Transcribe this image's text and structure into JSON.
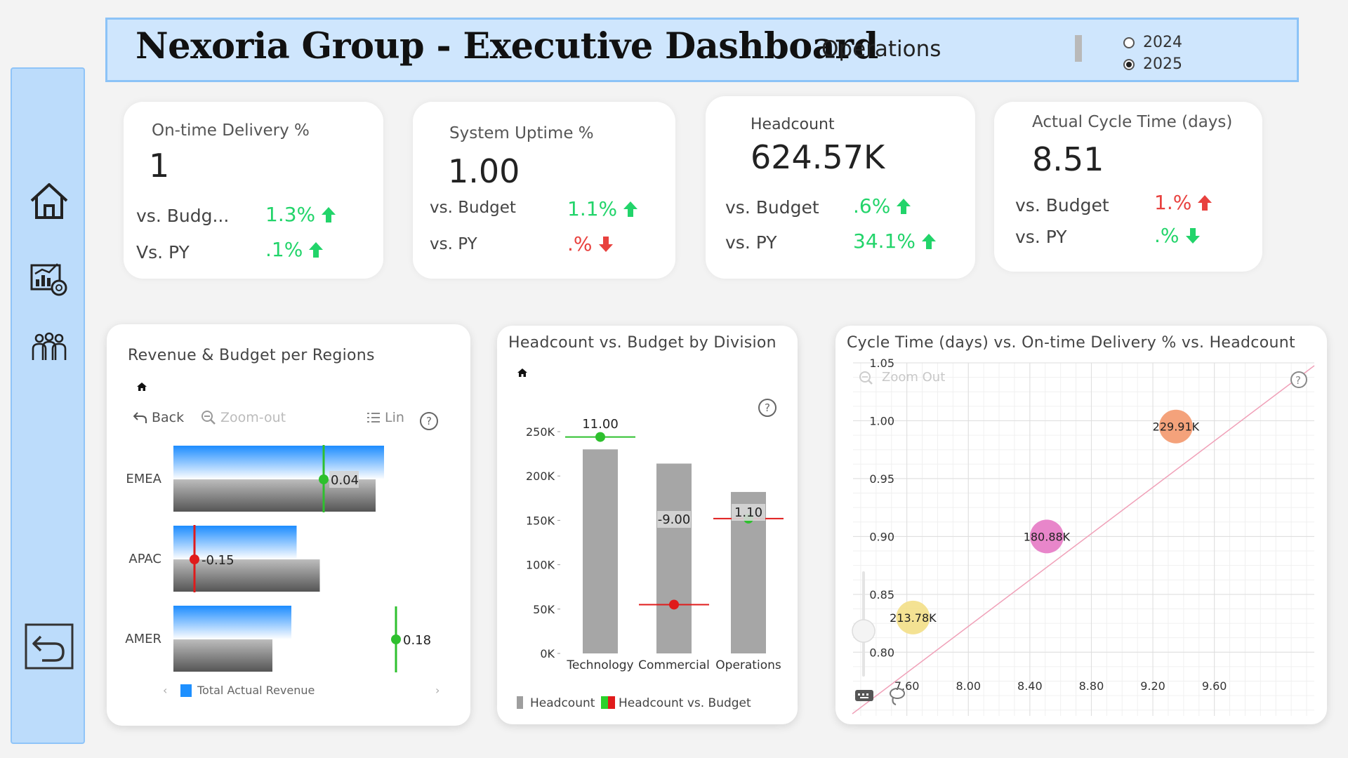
{
  "header": {
    "title": "Nexoria Group - Executive Dashboard",
    "subtitle": "Operations",
    "years": [
      {
        "label": "2024",
        "selected": false
      },
      {
        "label": "2025",
        "selected": true
      }
    ]
  },
  "sidebar": {
    "items": [
      {
        "icon": "home-icon"
      },
      {
        "icon": "analytics-report-icon"
      },
      {
        "icon": "team-people-icon"
      },
      {
        "icon": "back-arrow-icon"
      }
    ]
  },
  "kpis": [
    {
      "title": "On-time Delivery %",
      "value": "1",
      "budget_label": "vs. Budg...",
      "budget_delta": "1.3%",
      "budget_dir": "up",
      "py_label": "Vs. PY",
      "py_delta": ".1%",
      "py_dir": "up"
    },
    {
      "title": "System Uptime %",
      "value": "1.00",
      "budget_label": "vs. Budget",
      "budget_delta": "1.1%",
      "budget_dir": "up",
      "py_label": "vs. PY",
      "py_delta": ".%",
      "py_dir": "down"
    },
    {
      "title": "Headcount",
      "value": "624.57K",
      "budget_label": "vs. Budget",
      "budget_delta": ".6%",
      "budget_dir": "up",
      "py_label": "vs. PY",
      "py_delta": "34.1%",
      "py_dir": "up"
    },
    {
      "title": "Actual Cycle Time (days)",
      "value": "8.51",
      "budget_label": "vs. Budget",
      "budget_delta": "1.%",
      "budget_dir": "up_red",
      "py_label": "vs. PY",
      "py_delta": ".%",
      "py_dir": "down_green"
    }
  ],
  "colors": {
    "up": "#22d46a",
    "down": "#e8413e",
    "accent": "#1e90ff",
    "sidebar": "#bcdcfb"
  },
  "regions_chart": {
    "title": "Revenue & Budget per Regions",
    "back_label": "Back",
    "zoom_label": "Zoom-out",
    "lin_label": "Lin",
    "legend_label": "Total Actual Revenue"
  },
  "division_chart": {
    "title": "Headcount vs. Budget by Division",
    "legend_headcount": "Headcount",
    "legend_vs_budget": "Headcount vs. Budget"
  },
  "scatter_chart": {
    "title": "Cycle Time (days) vs. On-time Delivery % vs. Headcount",
    "zoom_label": "Zoom Out"
  },
  "chart_data": [
    {
      "type": "bar",
      "title": "Revenue & Budget per Regions",
      "categories": [
        "EMEA",
        "APAC",
        "AMER"
      ],
      "series": [
        {
          "name": "Total Actual Revenue",
          "values": [
            100,
            58.5,
            56
          ]
        },
        {
          "values": [
            96,
            69.5,
            47
          ]
        }
      ],
      "variance": [
        0.04,
        -0.15,
        0.18
      ],
      "variance_labels": [
        "0.04",
        "-0.15",
        "0.18"
      ]
    },
    {
      "type": "bar",
      "title": "Headcount vs. Budget by Division",
      "categories": [
        "Technology",
        "Commercial",
        "Operations"
      ],
      "series": [
        {
          "name": "Headcount",
          "values": [
            230000,
            214000,
            182000
          ]
        },
        {
          "name": "Headcount vs. Budget",
          "values": [
            244000,
            55000,
            152000
          ]
        }
      ],
      "labels": [
        "11.00",
        "-9.00",
        "1.10"
      ],
      "ylim": [
        0,
        250000
      ],
      "yticks": [
        0,
        50000,
        100000,
        150000,
        200000,
        250000
      ],
      "ytick_labels": [
        "0K",
        "50K",
        "100K",
        "150K",
        "200K",
        "250K"
      ]
    },
    {
      "type": "scatter",
      "title": "Cycle Time (days) vs. On-time Delivery % vs. Headcount",
      "points": [
        {
          "x": 7.64,
          "y": 0.83,
          "size": "213.78K",
          "color": "#f3e08a"
        },
        {
          "x": 8.51,
          "y": 0.9,
          "size": "180.88K",
          "color": "#e67cc6"
        },
        {
          "x": 9.35,
          "y": 0.995,
          "size": "229.91K",
          "color": "#f39a70"
        }
      ],
      "xticks": [
        7.6,
        8.0,
        8.4,
        8.8,
        9.2,
        9.6
      ],
      "xtick_labels": [
        "7.60",
        "8.00",
        "8.40",
        "8.80",
        "9.20",
        "9.60"
      ],
      "yticks": [
        0.8,
        0.85,
        0.9,
        0.95,
        1.0,
        1.05
      ],
      "ytick_labels": [
        "0.80",
        "0.85",
        "0.90",
        "0.95",
        "1.00",
        "1.05"
      ],
      "xlim": [
        7.25,
        10.25
      ],
      "ylim": [
        0.745,
        1.05
      ],
      "grid": true
    }
  ]
}
